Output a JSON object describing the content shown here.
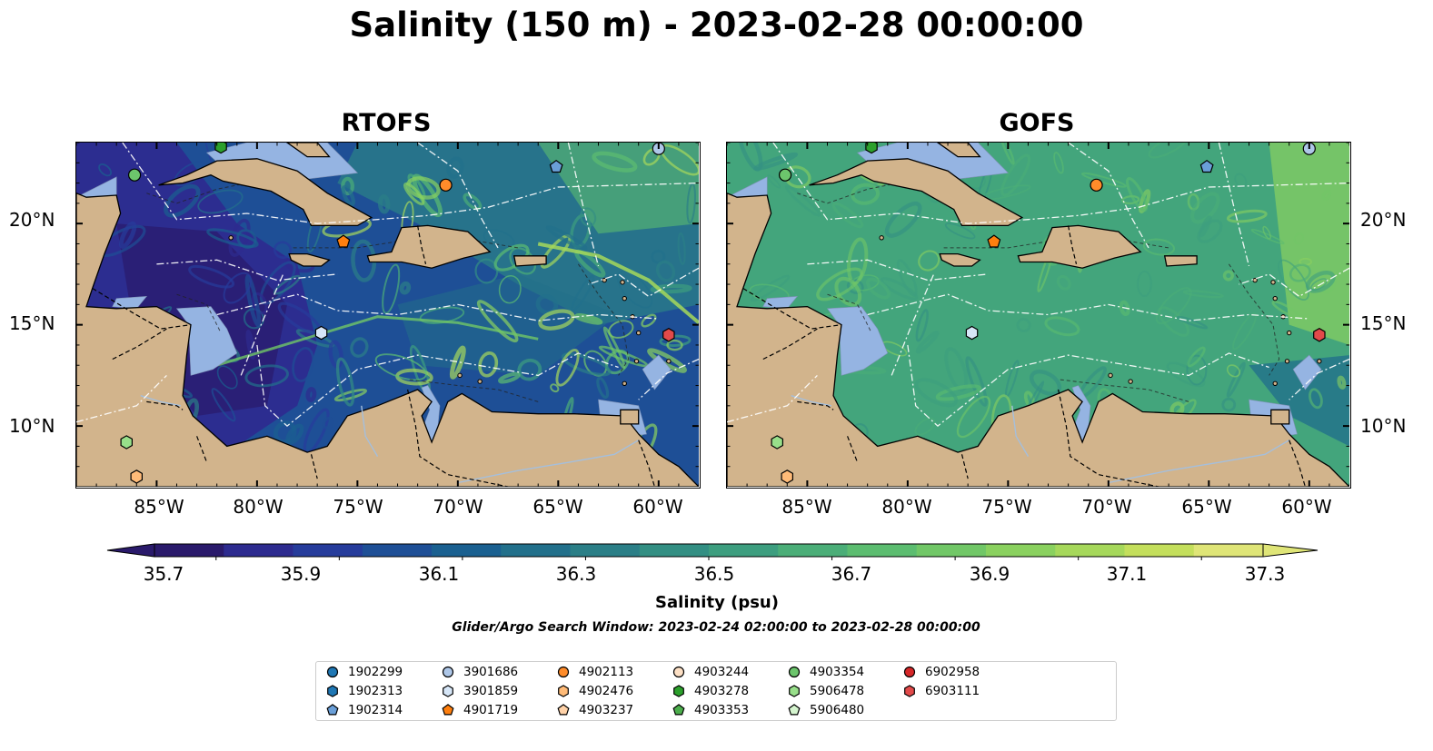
{
  "title": "Salinity (150 m) - 2023-02-28 00:00:00",
  "panels": [
    {
      "title": "RTOFS",
      "scheme": "rtofs"
    },
    {
      "title": "GOFS",
      "scheme": "gofs"
    }
  ],
  "map": {
    "lon_range": [
      -89,
      -58
    ],
    "lat_range": [
      7,
      24
    ],
    "lon_ticks": [
      "85°W",
      "80°W",
      "75°W",
      "70°W",
      "65°W",
      "60°W"
    ],
    "lon_tick_values": [
      -85,
      -80,
      -75,
      -70,
      -65,
      -60
    ],
    "lat_ticks": [
      "20°N",
      "15°N",
      "10°N"
    ],
    "lat_tick_values": [
      20,
      15,
      10
    ],
    "colors": {
      "land": "#d2b48c",
      "shallow": "#95b4e2",
      "eez": "#ffffff",
      "border": "#000000"
    }
  },
  "colorbar": {
    "label": "Salinity (psu)",
    "min": 35.6,
    "max": 37.4,
    "tick_labels": [
      "35.7",
      "35.9",
      "36.1",
      "36.3",
      "36.5",
      "36.7",
      "36.9",
      "37.1",
      "37.3"
    ],
    "tick_values": [
      35.7,
      35.9,
      36.1,
      36.3,
      36.5,
      36.7,
      36.9,
      37.1,
      37.3
    ],
    "colors": [
      "#2a1a6b",
      "#2d2b8f",
      "#263c9b",
      "#1e4f96",
      "#1a6090",
      "#22708b",
      "#2b7f87",
      "#338f83",
      "#3d9e7f",
      "#4bae78",
      "#5cbd70",
      "#71c767",
      "#8ad15f",
      "#a6d85b",
      "#c4df5c",
      "#dfe577"
    ]
  },
  "search_window": "Glider/Argo Search Window: 2023-02-24 02:00:00 to 2023-02-28 00:00:00",
  "legend": [
    {
      "id": "1902299",
      "color": "#1f77b4",
      "shape": "circle"
    },
    {
      "id": "1902313",
      "color": "#1f77b4",
      "shape": "hexagon"
    },
    {
      "id": "1902314",
      "color": "#6a9fd8",
      "shape": "pentagon"
    },
    {
      "id": "3901686",
      "color": "#aec7e8",
      "shape": "circle"
    },
    {
      "id": "3901859",
      "color": "#d6e6f7",
      "shape": "hexagon"
    },
    {
      "id": "4901719",
      "color": "#ff7f0e",
      "shape": "pentagon"
    },
    {
      "id": "4902113",
      "color": "#ff8c2a",
      "shape": "circle"
    },
    {
      "id": "4902476",
      "color": "#ffbb78",
      "shape": "hexagon"
    },
    {
      "id": "4903237",
      "color": "#ffd2a8",
      "shape": "pentagon"
    },
    {
      "id": "4903244",
      "color": "#fde0c5",
      "shape": "circle"
    },
    {
      "id": "4903278",
      "color": "#2ca02c",
      "shape": "hexagon"
    },
    {
      "id": "4903353",
      "color": "#4cae4c",
      "shape": "pentagon"
    },
    {
      "id": "4903354",
      "color": "#6cc56c",
      "shape": "circle"
    },
    {
      "id": "5906478",
      "color": "#98df8a",
      "shape": "hexagon"
    },
    {
      "id": "5906480",
      "color": "#d5f5cf",
      "shape": "pentagon"
    },
    {
      "id": "6902958",
      "color": "#d62728",
      "shape": "circle"
    },
    {
      "id": "6903111",
      "color": "#e24a4a",
      "shape": "hexagon"
    }
  ],
  "floats": [
    {
      "id": "3901686",
      "lon": -60.0,
      "lat": 23.7
    },
    {
      "id": "4903278",
      "lon": -81.8,
      "lat": 23.8
    },
    {
      "id": "4903354",
      "lon": -86.1,
      "lat": 22.4
    },
    {
      "id": "1902314",
      "lon": -65.1,
      "lat": 22.8
    },
    {
      "id": "4902113",
      "lon": -70.6,
      "lat": 21.9
    },
    {
      "id": "4901719",
      "lon": -75.7,
      "lat": 19.1
    },
    {
      "id": "3901859",
      "lon": -76.8,
      "lat": 14.6
    },
    {
      "id": "6903111",
      "lon": -59.5,
      "lat": 14.5
    },
    {
      "id": "5906478",
      "lon": -86.5,
      "lat": 9.2
    },
    {
      "id": "4902476",
      "lon": -86.0,
      "lat": 7.5
    }
  ]
}
